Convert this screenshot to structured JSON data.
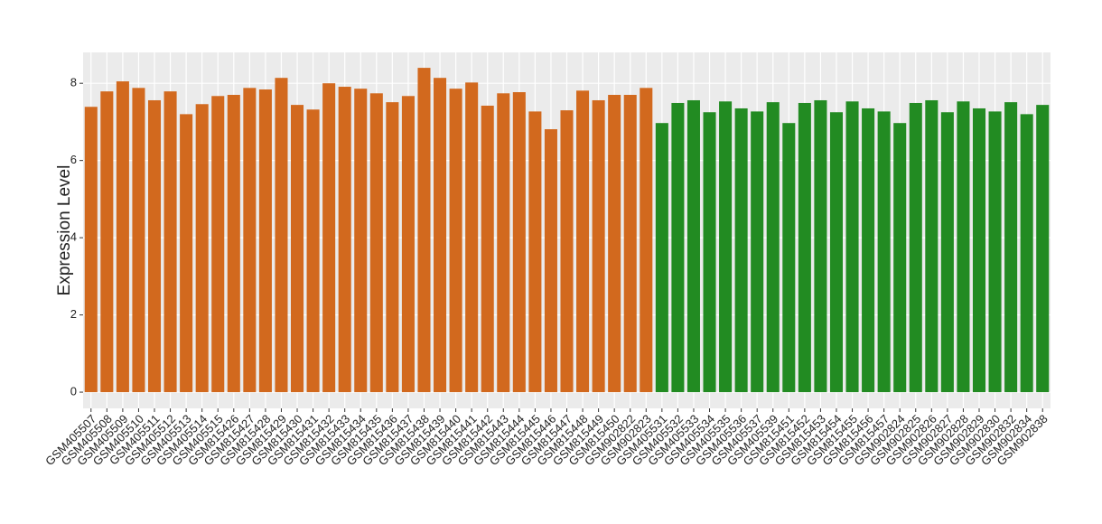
{
  "chart_data": {
    "type": "bar",
    "y_label": "Expression Level",
    "categories": [
      "GSM405507",
      "GSM405508",
      "GSM405509",
      "GSM405510",
      "GSM405511",
      "GSM405512",
      "GSM405513",
      "GSM405514",
      "GSM405515",
      "GSM815426",
      "GSM815427",
      "GSM815428",
      "GSM815429",
      "GSM815430",
      "GSM815431",
      "GSM815432",
      "GSM815433",
      "GSM815434",
      "GSM815435",
      "GSM815436",
      "GSM815437",
      "GSM815438",
      "GSM815439",
      "GSM815440",
      "GSM815441",
      "GSM815442",
      "GSM815443",
      "GSM815444",
      "GSM815445",
      "GSM815446",
      "GSM815447",
      "GSM815448",
      "GSM815449",
      "GSM815450",
      "GSM902822",
      "GSM902823",
      "GSM405531",
      "GSM405532",
      "GSM405533",
      "GSM405534",
      "GSM405535",
      "GSM405536",
      "GSM405537",
      "GSM405539",
      "GSM815451",
      "GSM815452",
      "GSM815453",
      "GSM815454",
      "GSM815455",
      "GSM815456",
      "GSM815457",
      "GSM902824",
      "GSM902825",
      "GSM902826",
      "GSM902827",
      "GSM902828",
      "GSM902829",
      "GSM902830",
      "GSM902832",
      "GSM902834",
      "GSM902838"
    ],
    "values": [
      7.39,
      7.79,
      8.05,
      7.88,
      7.56,
      7.79,
      7.2,
      7.46,
      7.67,
      7.7,
      7.88,
      7.84,
      8.14,
      7.44,
      7.32,
      8.0,
      7.91,
      7.86,
      7.74,
      7.51,
      7.67,
      8.4,
      8.14,
      7.86,
      8.02,
      7.42,
      7.74,
      7.77,
      7.27,
      6.81,
      7.3,
      7.81,
      7.56,
      7.7,
      7.7,
      7.88,
      6.97,
      7.49,
      7.56,
      7.25,
      7.53,
      7.35,
      7.27,
      7.51,
      6.97,
      7.49,
      7.56,
      7.25,
      7.53,
      7.35,
      7.27,
      6.97,
      7.49,
      7.56,
      7.25,
      7.53,
      7.35,
      7.27,
      7.51,
      7.2,
      7.44
    ],
    "colors": [
      "#d2691e",
      "#d2691e",
      "#d2691e",
      "#d2691e",
      "#d2691e",
      "#d2691e",
      "#d2691e",
      "#d2691e",
      "#d2691e",
      "#d2691e",
      "#d2691e",
      "#d2691e",
      "#d2691e",
      "#d2691e",
      "#d2691e",
      "#d2691e",
      "#d2691e",
      "#d2691e",
      "#d2691e",
      "#d2691e",
      "#d2691e",
      "#d2691e",
      "#d2691e",
      "#d2691e",
      "#d2691e",
      "#d2691e",
      "#d2691e",
      "#d2691e",
      "#d2691e",
      "#d2691e",
      "#d2691e",
      "#d2691e",
      "#d2691e",
      "#d2691e",
      "#d2691e",
      "#d2691e",
      "#228b22",
      "#228b22",
      "#228b22",
      "#228b22",
      "#228b22",
      "#228b22",
      "#228b22",
      "#228b22",
      "#228b22",
      "#228b22",
      "#228b22",
      "#228b22",
      "#228b22",
      "#228b22",
      "#228b22",
      "#228b22",
      "#228b22",
      "#228b22",
      "#228b22",
      "#228b22",
      "#228b22",
      "#228b22",
      "#228b22",
      "#228b22",
      "#228b22"
    ],
    "ylim": [
      -0.42,
      8.8
    ],
    "yticks": [
      0,
      2,
      4,
      6,
      8
    ],
    "grid": true
  }
}
